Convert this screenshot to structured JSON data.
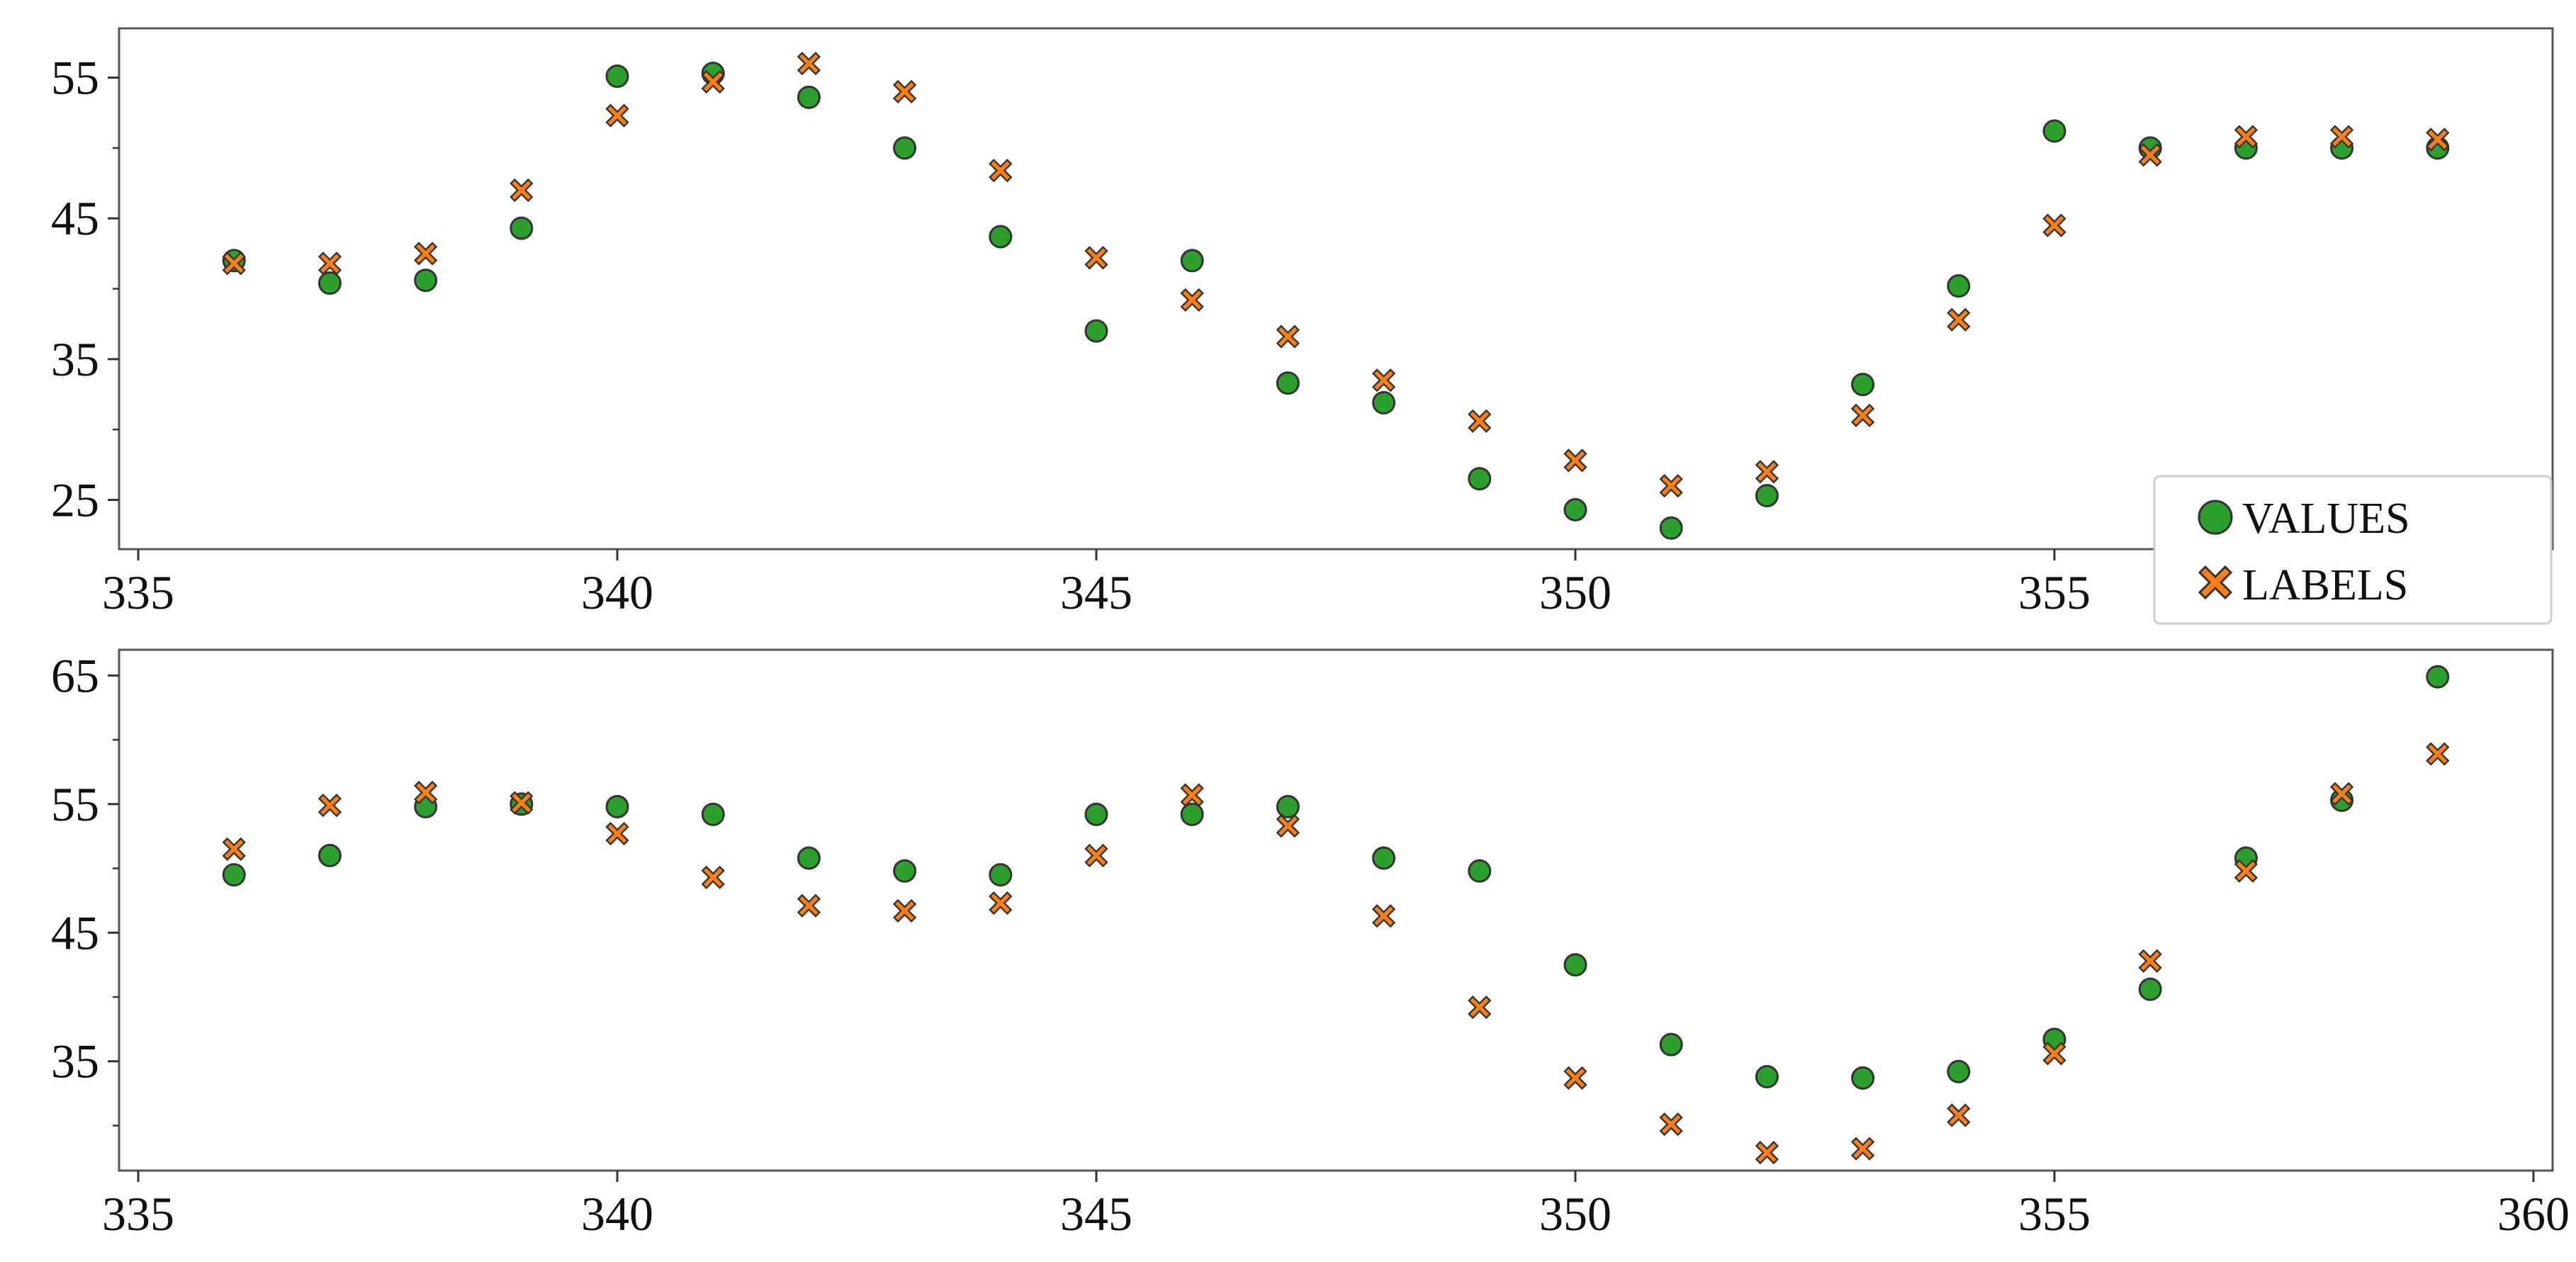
{
  "colors": {
    "values_fill": "#2ca02c",
    "labels_fill": "#ff7f0e",
    "marker_edge": "#333333",
    "axes": "#555555"
  },
  "legend": {
    "placement": "bottom-right of upper panel",
    "entries": [
      {
        "label": "VALUES",
        "marker": "circle",
        "color": "#2ca02c"
      },
      {
        "label": "LABELS",
        "marker": "x",
        "color": "#ff7f0e"
      }
    ]
  },
  "chart_data": [
    {
      "type": "scatter",
      "xlim": [
        334.8,
        360.2
      ],
      "ylim": [
        21.5,
        58.5
      ],
      "xticks": [
        335,
        340,
        345,
        350,
        355
      ],
      "yticks": [
        25,
        35,
        45,
        55
      ],
      "minor_yticks": [
        30,
        40,
        50
      ],
      "grid": false,
      "series": [
        {
          "name": "VALUES",
          "marker": "circle",
          "x": [
            336,
            337,
            338,
            339,
            340,
            341,
            342,
            343,
            344,
            345,
            346,
            347,
            348,
            349,
            350,
            351,
            352,
            353,
            354,
            355,
            356,
            357,
            358,
            359
          ],
          "y": [
            42,
            40.4,
            40.6,
            44.3,
            55.1,
            55.3,
            53.6,
            50,
            43.7,
            37,
            42,
            33.3,
            31.9,
            26.5,
            24.3,
            23,
            25.3,
            33.2,
            40.2,
            51.2,
            50,
            50,
            50,
            50
          ]
        },
        {
          "name": "LABELS",
          "marker": "x",
          "x": [
            336,
            337,
            338,
            339,
            340,
            341,
            342,
            343,
            344,
            345,
            346,
            347,
            348,
            349,
            350,
            351,
            352,
            353,
            354,
            355,
            356,
            357,
            358,
            359
          ],
          "y": [
            41.8,
            41.8,
            42.5,
            47,
            52.3,
            54.7,
            56,
            54,
            48.4,
            42.2,
            39.2,
            36.6,
            33.5,
            30.6,
            27.8,
            26,
            27,
            31,
            37.8,
            44.5,
            49.5,
            50.8,
            50.8,
            50.6
          ]
        }
      ]
    },
    {
      "type": "scatter",
      "xlim": [
        334.8,
        360.2
      ],
      "ylim": [
        26.5,
        67
      ],
      "xticks": [
        335,
        340,
        345,
        350,
        355,
        360
      ],
      "yticks": [
        35,
        45,
        55,
        65
      ],
      "minor_yticks": [
        30,
        40,
        50,
        60
      ],
      "grid": false,
      "series": [
        {
          "name": "VALUES",
          "marker": "circle",
          "x": [
            336,
            337,
            338,
            339,
            340,
            341,
            342,
            343,
            344,
            345,
            346,
            347,
            348,
            349,
            350,
            351,
            352,
            353,
            354,
            355,
            356,
            357,
            358,
            359
          ],
          "y": [
            49.5,
            51,
            54.8,
            55,
            54.8,
            54.2,
            50.8,
            49.8,
            49.5,
            54.2,
            54.2,
            54.8,
            50.8,
            49.8,
            42.5,
            36.3,
            33.8,
            33.7,
            34.2,
            36.7,
            40.6,
            50.8,
            55.3,
            64.9
          ]
        },
        {
          "name": "LABELS",
          "marker": "x",
          "x": [
            336,
            337,
            338,
            339,
            340,
            341,
            342,
            343,
            344,
            345,
            346,
            347,
            348,
            349,
            350,
            351,
            352,
            353,
            354,
            355,
            356,
            357,
            358,
            359
          ],
          "y": [
            51.5,
            54.9,
            55.9,
            55.1,
            52.7,
            49.3,
            47.1,
            46.7,
            47.3,
            51,
            55.7,
            53.3,
            46.3,
            39.2,
            33.7,
            30.1,
            27.9,
            28.2,
            30.8,
            35.6,
            42.8,
            49.8,
            55.8,
            58.9
          ]
        }
      ]
    }
  ]
}
